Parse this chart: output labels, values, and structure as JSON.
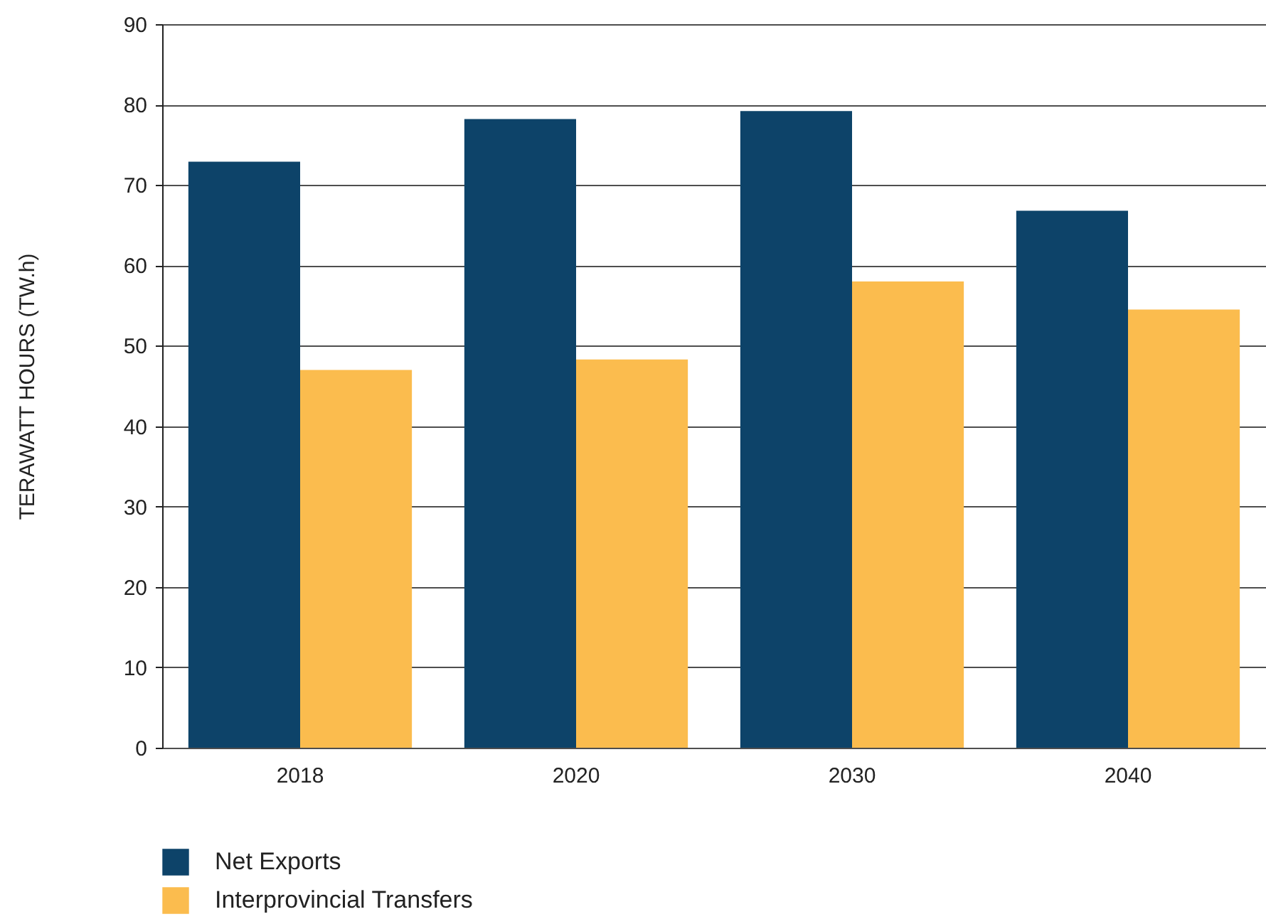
{
  "chart_data": {
    "type": "bar",
    "ylabel": "TERAWATT HOURS (TW.h)",
    "categories": [
      "2018",
      "2020",
      "2030",
      "2040"
    ],
    "series": [
      {
        "name": "Net Exports",
        "color": "#0d4369",
        "values": [
          72.9,
          78.2,
          79.2,
          66.8
        ]
      },
      {
        "name": "Interprovincial Transfers",
        "color": "#fbbc4e",
        "values": [
          47.0,
          48.3,
          58.0,
          54.5
        ]
      }
    ],
    "ylim": [
      0,
      90
    ],
    "yticks": [
      0,
      10,
      20,
      30,
      40,
      50,
      60,
      70,
      80,
      90
    ],
    "grid": "y",
    "legend": "bottom left"
  }
}
